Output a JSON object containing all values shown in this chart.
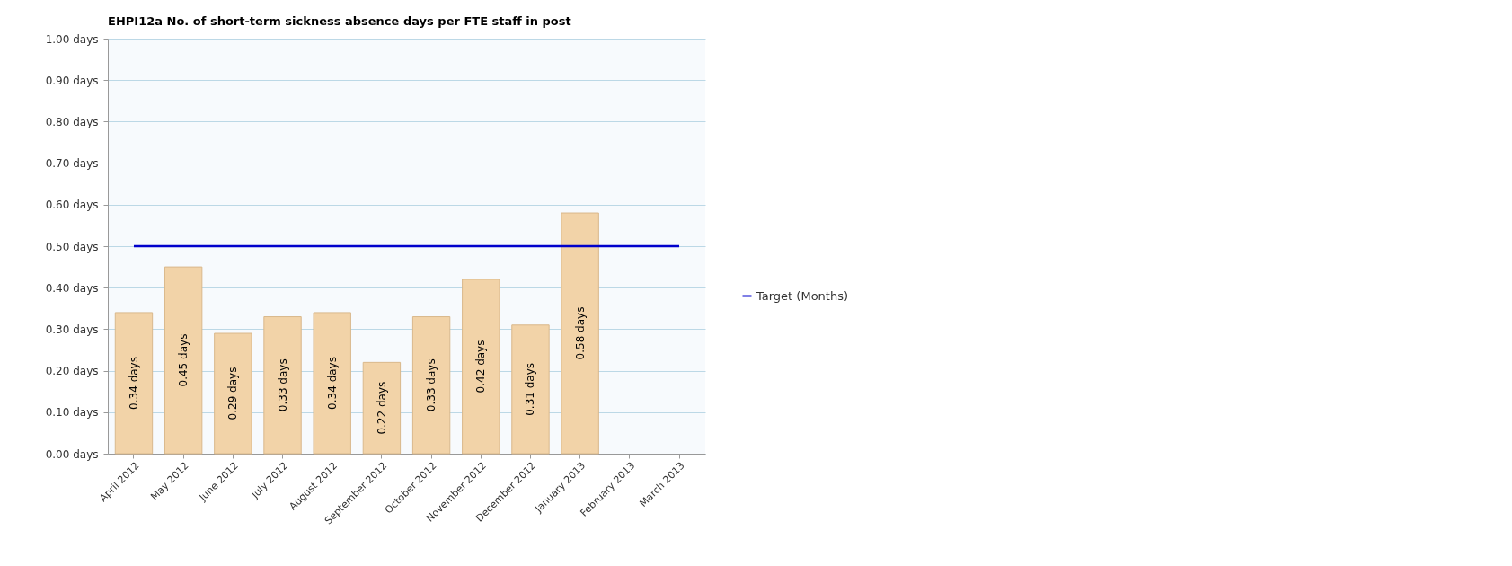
{
  "chart_data": {
    "type": "bar",
    "title": "EHPI12a No. of short-term sickness absence days per FTE staff in post",
    "categories": [
      "April 2012",
      "May 2012",
      "June 2012",
      "July 2012",
      "August 2012",
      "September 2012",
      "October 2012",
      "November 2012",
      "December 2012",
      "January 2013",
      "February 2013",
      "March 2013"
    ],
    "series": [
      {
        "color": "#f2d3a8",
        "values": [
          0.34,
          0.45,
          0.29,
          0.33,
          0.34,
          0.22,
          0.33,
          0.42,
          0.31,
          0.58,
          null,
          null
        ],
        "value_labels": [
          "0.34 days",
          "0.45 days",
          "0.29 days",
          "0.33 days",
          "0.34 days",
          "0.22 days",
          "0.33 days",
          "0.42 days",
          "0.31 days",
          "0.58 days",
          null,
          null
        ]
      },
      {
        "type": "line",
        "name": "Target (Months)",
        "color": "#0000cc",
        "values": [
          0.5,
          0.5,
          0.5,
          0.5,
          0.5,
          0.5,
          0.5,
          0.5,
          0.5,
          0.5,
          0.5,
          0.5
        ]
      }
    ],
    "ylim": [
      0,
      1
    ],
    "yticks": [
      {
        "value": 0,
        "label": "0.00 days"
      },
      {
        "value": 0.1,
        "label": "0.10 days"
      },
      {
        "value": 0.2,
        "label": "0.20 days"
      },
      {
        "value": 0.3,
        "label": "0.30 days"
      },
      {
        "value": 0.4,
        "label": "0.40 days"
      },
      {
        "value": 0.5,
        "label": "0.50 days"
      },
      {
        "value": 0.6,
        "label": "0.60 days"
      },
      {
        "value": 0.7,
        "label": "0.70 days"
      },
      {
        "value": 0.8,
        "label": "0.80 days"
      },
      {
        "value": 0.9,
        "label": "0.90 days"
      },
      {
        "value": 1,
        "label": "1.00 days"
      }
    ],
    "grid": "y",
    "legend": "right"
  }
}
